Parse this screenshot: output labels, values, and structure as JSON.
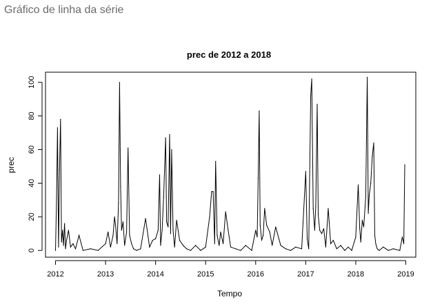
{
  "page": {
    "heading": "Gráfico de linha da série"
  },
  "chart_data": {
    "type": "line",
    "title": "prec de 2012 a 2018",
    "xlabel": "Tempo",
    "ylabel": "prec",
    "xlim": [
      2011.8,
      2019.2
    ],
    "ylim": [
      -4,
      106
    ],
    "x_ticks": [
      2012,
      2013,
      2014,
      2015,
      2016,
      2017,
      2018,
      2019
    ],
    "y_ticks": [
      0,
      20,
      40,
      60,
      80,
      100
    ],
    "grid": false,
    "color": "#000000",
    "series": [
      {
        "x": [
          2012.0,
          2012.02,
          2012.04,
          2012.06,
          2012.08,
          2012.1,
          2012.12,
          2012.14,
          2012.16,
          2012.18,
          2012.2,
          2012.22,
          2012.26,
          2012.3,
          2012.35,
          2012.4,
          2012.47,
          2012.55,
          2012.7,
          2012.85,
          2013.0,
          2013.05,
          2013.1,
          2013.15,
          2013.18,
          2013.2,
          2013.23,
          2013.26,
          2013.28,
          2013.3,
          2013.32,
          2013.35,
          2013.38,
          2013.42,
          2013.45,
          2013.48,
          2013.52,
          2013.56,
          2013.62,
          2013.7,
          2013.8,
          2013.88,
          2013.94,
          2014.0,
          2014.05,
          2014.08,
          2014.1,
          2014.13,
          2014.16,
          2014.2,
          2014.22,
          2014.25,
          2014.28,
          2014.3,
          2014.32,
          2014.35,
          2014.38,
          2014.42,
          2014.48,
          2014.55,
          2014.62,
          2014.7,
          2014.8,
          2014.9,
          2015.0,
          2015.08,
          2015.12,
          2015.15,
          2015.18,
          2015.2,
          2015.23,
          2015.27,
          2015.3,
          2015.35,
          2015.4,
          2015.45,
          2015.5,
          2015.6,
          2015.7,
          2015.8,
          2015.92,
          2016.0,
          2016.03,
          2016.05,
          2016.07,
          2016.09,
          2016.12,
          2016.15,
          2016.18,
          2016.22,
          2016.28,
          2016.33,
          2016.4,
          2016.5,
          2016.6,
          2016.7,
          2016.8,
          2016.92,
          2017.0,
          2017.03,
          2017.06,
          2017.1,
          2017.12,
          2017.15,
          2017.18,
          2017.2,
          2017.23,
          2017.25,
          2017.28,
          2017.32,
          2017.36,
          2017.4,
          2017.45,
          2017.5,
          2017.55,
          2017.62,
          2017.7,
          2017.78,
          2017.85,
          2017.92,
          2018.0,
          2018.05,
          2018.08,
          2018.1,
          2018.13,
          2018.16,
          2018.2,
          2018.23,
          2018.25,
          2018.27,
          2018.3,
          2018.33,
          2018.36,
          2018.38,
          2018.4,
          2018.43,
          2018.47,
          2018.55,
          2018.65,
          2018.75,
          2018.88,
          2018.93,
          2018.96,
          2018.98
        ],
        "y": [
          0,
          31,
          73,
          2,
          48,
          78,
          5,
          12,
          3,
          16,
          1,
          6,
          12,
          2,
          4,
          1,
          9,
          0,
          1,
          0,
          4,
          11,
          2,
          9,
          20,
          15,
          4,
          28,
          100,
          38,
          12,
          17,
          3,
          11,
          61,
          9,
          4,
          1,
          0,
          1,
          19,
          2,
          6,
          7,
          12,
          45,
          3,
          12,
          32,
          67,
          17,
          14,
          69,
          10,
          60,
          12,
          2,
          18,
          6,
          3,
          1,
          0,
          3,
          0,
          2,
          20,
          35,
          35,
          4,
          53,
          9,
          3,
          11,
          4,
          23,
          12,
          2,
          1,
          0,
          3,
          0,
          12,
          8,
          43,
          83,
          15,
          6,
          9,
          25,
          15,
          11,
          3,
          14,
          3,
          1,
          0,
          2,
          1,
          47,
          7,
          1,
          92,
          102,
          25,
          12,
          26,
          87,
          21,
          12,
          10,
          13,
          2,
          25,
          4,
          6,
          1,
          3,
          0,
          2,
          0,
          8,
          39,
          13,
          5,
          18,
          14,
          32,
          103,
          22,
          33,
          40,
          56,
          64,
          9,
          4,
          1,
          0,
          2,
          0,
          1,
          0,
          8,
          4,
          51
        ]
      }
    ]
  }
}
